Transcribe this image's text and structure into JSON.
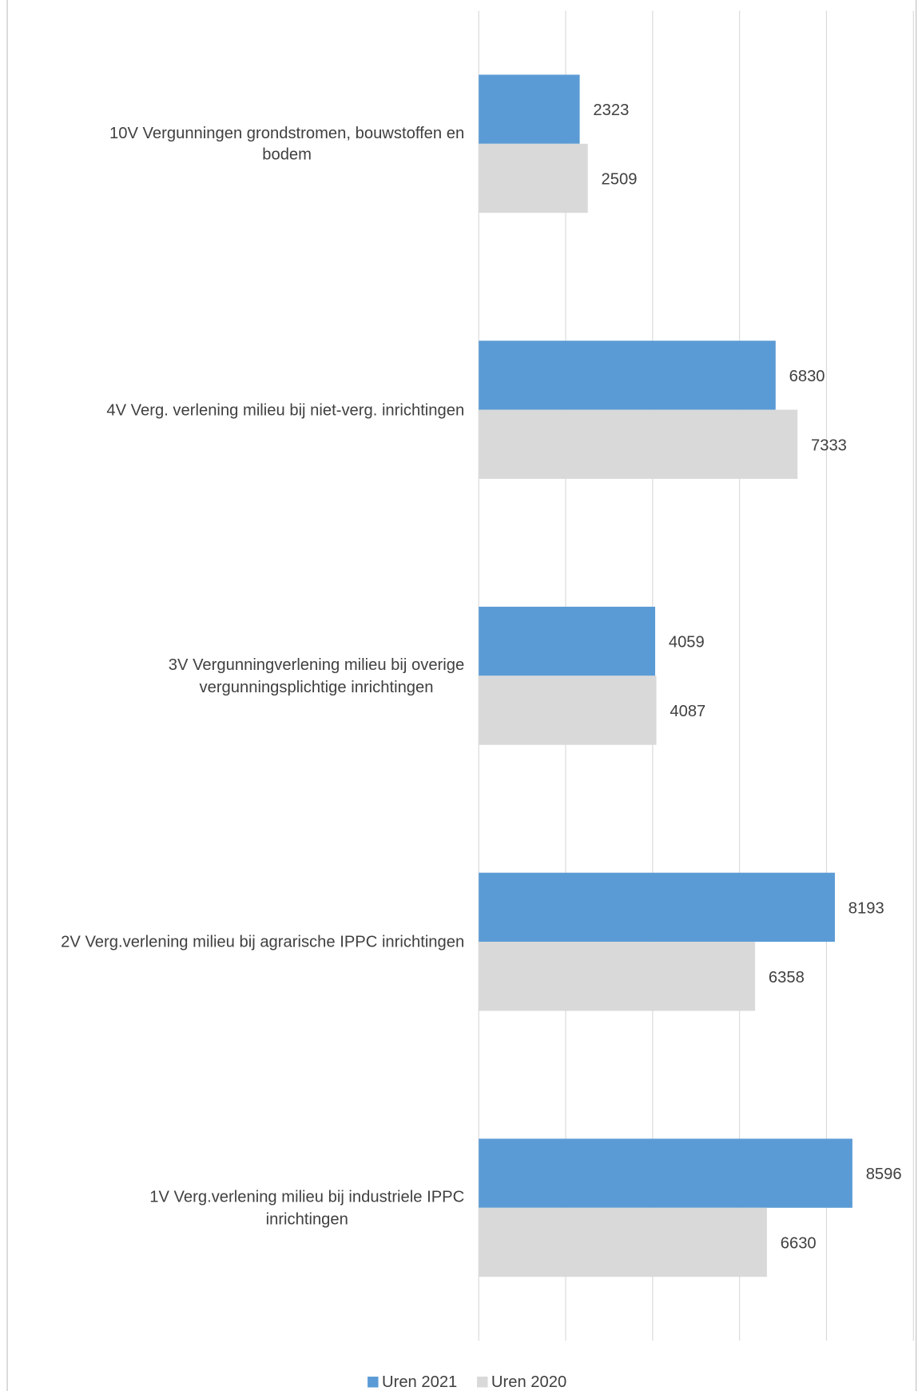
{
  "chart_data": {
    "type": "barh",
    "categories": [
      "10V Vergunningen grondstromen, bouwstoffen en\nbodem",
      "4V Verg. verlening milieu bij niet-verg. inrichtingen",
      "3V Vergunningverlening milieu bij overige\nvergunningsplichtige inrichtingen",
      "2V Verg.verlening milieu bij agrarische IPPC inrichtingen",
      "1V Verg.verlening milieu bij industriele IPPC\ninrichtingen"
    ],
    "series": [
      {
        "name": "Uren 2021",
        "color": "#5b9bd5",
        "values": [
          2323,
          6830,
          4059,
          8193,
          8596
        ]
      },
      {
        "name": "Uren 2020",
        "color": "#d9d9d9",
        "values": [
          2509,
          7333,
          4087,
          6358,
          6630
        ]
      }
    ],
    "xlim": [
      0,
      10000
    ],
    "xticks": [
      0,
      2000,
      4000,
      6000,
      8000,
      10000
    ],
    "grid": true,
    "legend": "bottom"
  }
}
